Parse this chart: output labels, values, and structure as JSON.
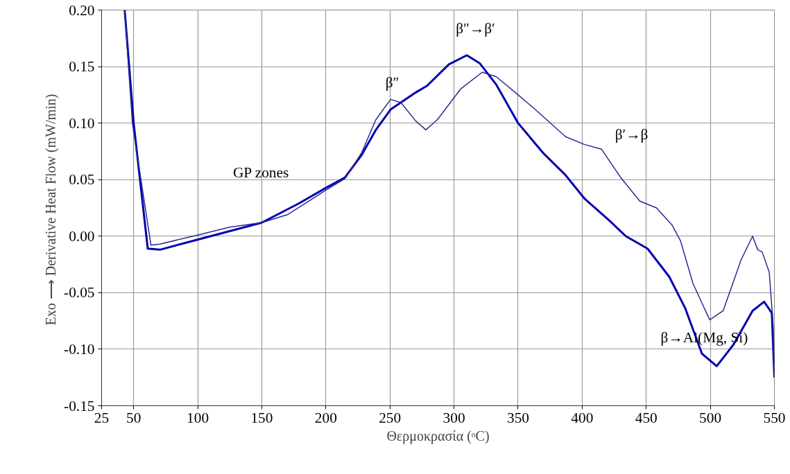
{
  "chart_data": {
    "type": "line",
    "xlabel": "Θερμοκρασία (ᵒC)",
    "ylabel": "Exo ⟶  Derivative Heat Flow (mW/min)",
    "xlim": [
      25,
      550
    ],
    "xticks": [
      25,
      50,
      100,
      150,
      200,
      250,
      300,
      350,
      400,
      450,
      500,
      550
    ],
    "ylim": [
      -0.15,
      0.2
    ],
    "yticks": [
      {
        "value": -0.15,
        "label": "-0.15"
      },
      {
        "value": -0.1,
        "label": "-0.10"
      },
      {
        "value": -0.05,
        "label": "-0.05"
      },
      {
        "value": 0,
        "label": "0.00"
      },
      {
        "value": 0.05,
        "label": "0.05"
      },
      {
        "value": 0.1,
        "label": "0.10"
      },
      {
        "value": 0.15,
        "label": "0.15"
      },
      {
        "value": 0.2,
        "label": "0.20"
      }
    ],
    "grid": true,
    "marker": "none",
    "line_style": "solid",
    "series": [
      {
        "color": "#0000b0",
        "x": [
          43,
          50,
          61,
          70.5,
          100,
          150,
          179,
          200.5,
          215,
          228,
          239,
          250.5,
          270,
          279,
          296,
          310,
          320,
          333,
          350,
          370,
          387,
          402,
          421,
          434,
          451,
          468,
          480.5,
          493.5,
          505,
          518,
          533,
          542,
          548,
          550
        ],
        "values": [
          0.2,
          0.1,
          -0.011,
          -0.012,
          -0.003,
          0.012,
          0.029,
          0.043,
          0.052,
          0.072,
          0.094,
          0.112,
          0.127,
          0.133,
          0.152,
          0.16,
          0.153,
          0.134,
          0.1,
          0.073,
          0.054,
          0.033,
          0.014,
          0.0,
          -0.011,
          -0.036,
          -0.064,
          -0.104,
          -0.115,
          -0.096,
          -0.066,
          -0.058,
          -0.068,
          -0.125
        ]
      },
      {
        "color": "#2a2a90",
        "x": [
          43,
          49,
          63.5,
          70.5,
          100,
          125,
          150,
          170,
          200.5,
          215,
          228,
          239,
          250.5,
          258.7,
          270,
          278,
          287,
          305,
          322,
          333,
          350,
          364.5,
          387,
          402,
          415,
          430,
          445,
          458,
          470,
          476.7,
          486.5,
          499.5,
          510,
          524,
          533,
          537,
          540.5,
          546,
          549,
          550
        ],
        "values": [
          0.2,
          0.1,
          -0.008,
          -0.007,
          0.001,
          0.008,
          0.012,
          0.019,
          0.041,
          0.051,
          0.074,
          0.103,
          0.121,
          0.118,
          0.102,
          0.094,
          0.103,
          0.13,
          0.145,
          0.141,
          0.125,
          0.111,
          0.088,
          0.081,
          0.077,
          0.052,
          0.031,
          0.025,
          0.01,
          -0.004,
          -0.042,
          -0.074,
          -0.066,
          -0.021,
          0.0,
          -0.012,
          -0.014,
          -0.032,
          -0.078,
          -0.125
        ]
      }
    ],
    "annotations": [
      "β″",
      "β″→β′",
      "β′→β",
      "GP zones",
      "β→Al(Mg, Si)"
    ]
  }
}
